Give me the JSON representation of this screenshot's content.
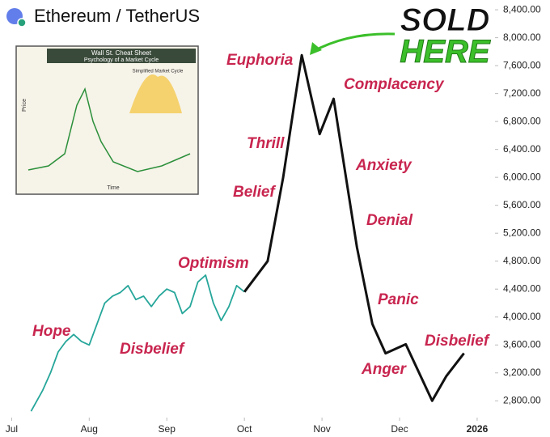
{
  "chart_data": {
    "type": "line",
    "title": "Ethereum / TetherUS",
    "xlim": [
      6.85,
      13.23
    ],
    "xticks": [
      {
        "value": 7,
        "label": "Jul"
      },
      {
        "value": 8,
        "label": "Aug"
      },
      {
        "value": 9,
        "label": "Sep"
      },
      {
        "value": 10,
        "label": "Oct"
      },
      {
        "value": 11,
        "label": "Nov"
      },
      {
        "value": 12,
        "label": "Dec"
      },
      {
        "value": 13,
        "label": "2026"
      }
    ],
    "ylim": [
      2560,
      8540
    ],
    "yticks": [
      {
        "value": 2800,
        "label": "2,800.00"
      },
      {
        "value": 3200,
        "label": "3,200.00"
      },
      {
        "value": 3600,
        "label": "3,600.00"
      },
      {
        "value": 4000,
        "label": "4,000.00"
      },
      {
        "value": 4400,
        "label": "4,400.00"
      },
      {
        "value": 4800,
        "label": "4,800.00"
      },
      {
        "value": 5200,
        "label": "5,200.00"
      },
      {
        "value": 5600,
        "label": "5,600.00"
      },
      {
        "value": 6000,
        "label": "6,000.00"
      },
      {
        "value": 6400,
        "label": "6,400.00"
      },
      {
        "value": 6800,
        "label": "6,800.00"
      },
      {
        "value": 7200,
        "label": "7,200.00"
      },
      {
        "value": 7600,
        "label": "7,600.00"
      },
      {
        "value": 8000,
        "label": "8,000.00"
      },
      {
        "value": 8400,
        "label": "8,400.00"
      }
    ],
    "series": [
      {
        "color": "#26a69a",
        "x": [
          7.25,
          7.4,
          7.5,
          7.6,
          7.7,
          7.8,
          7.9,
          8.0,
          8.1,
          8.2,
          8.3,
          8.4,
          8.5,
          8.6,
          8.7,
          8.8,
          8.9,
          9.0,
          9.1,
          9.2,
          9.3,
          9.4,
          9.5,
          9.6,
          9.7,
          9.8,
          9.9,
          10.0
        ],
        "values": [
          2650,
          2950,
          3200,
          3500,
          3650,
          3750,
          3650,
          3600,
          3900,
          4200,
          4300,
          4350,
          4450,
          4250,
          4300,
          4150,
          4300,
          4400,
          4350,
          4050,
          4150,
          4500,
          4600,
          4200,
          3950,
          4150,
          4450,
          4360
        ]
      },
      {
        "color": "#111111",
        "x": [
          10.0,
          10.3,
          10.5,
          10.65,
          10.74,
          10.97,
          11.15,
          11.45,
          11.65,
          11.82,
          12.08,
          12.42,
          12.6,
          12.83
        ],
        "values": [
          4360,
          4800,
          6000,
          7100,
          7750,
          6620,
          7125,
          5000,
          3900,
          3480,
          3610,
          2800,
          3150,
          3480
        ]
      }
    ],
    "annotations": [
      "Euphoria",
      "Complacency",
      "Thrill",
      "Anxiety",
      "Belief",
      "Denial",
      "Optimism",
      "Panic",
      "Hope",
      "Anger",
      "Disbelief",
      "Disbelief",
      "SOLD",
      "HERE"
    ],
    "inset": {
      "title": "Wall St. Cheat Sheet",
      "subtitle": "Psychology of a Market Cycle",
      "side": "Simplified Market Cycle",
      "x": "Time",
      "y": "Price"
    }
  }
}
